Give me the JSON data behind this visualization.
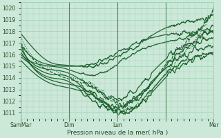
{
  "bg_color": "#cce8d8",
  "grid_color": "#99ccb0",
  "line_color": "#1a5c2a",
  "xlabel": "Pression niveau de la mer( hPa )",
  "ylim": [
    1010.5,
    1020.5
  ],
  "xlim": [
    0,
    96
  ],
  "yticks": [
    1011,
    1012,
    1013,
    1014,
    1015,
    1016,
    1017,
    1018,
    1019,
    1020
  ],
  "xtick_positions": [
    0,
    24,
    48,
    72,
    96
  ],
  "xtick_labels": [
    "SamMar",
    "Dim",
    "Lun",
    "",
    "Mer"
  ],
  "figsize": [
    3.2,
    2.0
  ],
  "dpi": 100,
  "lines": [
    {
      "anchors_x": [
        0,
        8,
        15,
        22,
        35,
        55,
        75,
        90,
        96
      ],
      "anchors_y": [
        1017.8,
        1016.2,
        1015.3,
        1015.1,
        1015.0,
        1016.5,
        1018.5,
        1019.0,
        1019.3
      ],
      "lw": 0.9,
      "ls": "-"
    },
    {
      "anchors_x": [
        0,
        8,
        15,
        22,
        35,
        55,
        75,
        90,
        96
      ],
      "anchors_y": [
        1016.8,
        1015.5,
        1015.1,
        1015.0,
        1015.2,
        1016.8,
        1017.8,
        1018.0,
        1018.0
      ],
      "lw": 0.9,
      "ls": "-"
    },
    {
      "anchors_x": [
        0,
        8,
        15,
        22,
        35,
        55,
        75,
        90,
        96
      ],
      "anchors_y": [
        1016.0,
        1015.2,
        1015.0,
        1014.8,
        1014.2,
        1016.0,
        1017.2,
        1017.8,
        1018.0
      ],
      "lw": 0.9,
      "ls": "-"
    },
    {
      "anchors_x": [
        0,
        8,
        15,
        22,
        35,
        50,
        60,
        75,
        90,
        96
      ],
      "anchors_y": [
        1016.5,
        1015.0,
        1014.7,
        1014.5,
        1013.2,
        1012.2,
        1013.5,
        1016.0,
        1017.2,
        1017.5
      ],
      "lw": 0.9,
      "ls": "-"
    },
    {
      "anchors_x": [
        0,
        8,
        15,
        22,
        35,
        50,
        60,
        75,
        90,
        96
      ],
      "anchors_y": [
        1015.8,
        1014.8,
        1014.3,
        1014.2,
        1012.5,
        1011.5,
        1012.8,
        1015.2,
        1016.5,
        1016.8
      ],
      "lw": 0.9,
      "ls": "-"
    },
    {
      "anchors_x": [
        0,
        8,
        15,
        22,
        35,
        50,
        60,
        75,
        90,
        96
      ],
      "anchors_y": [
        1016.2,
        1014.6,
        1014.0,
        1013.8,
        1012.2,
        1011.1,
        1012.0,
        1014.8,
        1016.0,
        1016.2
      ],
      "lw": 0.9,
      "ls": "-"
    },
    {
      "anchors_x": [
        0,
        8,
        15,
        22,
        35,
        50,
        60,
        75,
        90,
        96
      ],
      "anchors_y": [
        1016.8,
        1014.5,
        1013.8,
        1013.5,
        1012.8,
        1011.0,
        1011.8,
        1014.5,
        1015.8,
        1016.0
      ],
      "lw": 0.9,
      "ls": "-"
    },
    {
      "anchors_x": [
        0,
        8,
        15,
        22,
        35,
        50,
        60,
        75,
        90,
        96
      ],
      "anchors_y": [
        1015.5,
        1014.2,
        1013.5,
        1013.2,
        1012.5,
        1011.5,
        1012.5,
        1015.5,
        1017.5,
        1018.5
      ],
      "lw": 0.9,
      "ls": "-"
    },
    {
      "anchors_x": [
        0,
        5,
        10,
        15,
        22,
        35,
        50,
        60,
        75,
        90,
        96
      ],
      "anchors_y": [
        1017.0,
        1015.8,
        1015.0,
        1014.5,
        1014.0,
        1013.2,
        1011.8,
        1012.5,
        1015.8,
        1018.5,
        1020.0
      ],
      "lw": 0.9,
      "ls": "--"
    },
    {
      "anchors_x": [
        0,
        5,
        10,
        15,
        22,
        35,
        50,
        60,
        75,
        90,
        96
      ],
      "anchors_y": [
        1017.5,
        1016.0,
        1015.2,
        1014.8,
        1014.2,
        1013.5,
        1011.5,
        1012.0,
        1015.0,
        1018.0,
        1020.2
      ],
      "lw": 0.8,
      "ls": ":"
    }
  ],
  "wiggles": [
    {
      "xmin": 30,
      "xmax": 65,
      "amp": 0.25
    },
    {
      "xmin": 30,
      "xmax": 65,
      "amp": 0.2
    },
    {
      "xmin": 30,
      "xmax": 65,
      "amp": 0.2
    },
    {
      "xmin": 30,
      "xmax": 65,
      "amp": 0.3
    },
    {
      "xmin": 30,
      "xmax": 65,
      "amp": 0.35
    },
    {
      "xmin": 30,
      "xmax": 65,
      "amp": 0.35
    },
    {
      "xmin": 30,
      "xmax": 65,
      "amp": 0.3
    },
    {
      "xmin": 30,
      "xmax": 65,
      "amp": 0.3
    },
    {
      "xmin": 30,
      "xmax": 68,
      "amp": 0.35
    },
    {
      "xmin": 30,
      "xmax": 68,
      "amp": 0.35
    }
  ],
  "end_wiggles": [
    {
      "xmin": 73,
      "xmax": 96,
      "amp": 0.35
    },
    {
      "xmin": 73,
      "xmax": 96,
      "amp": 0.3
    },
    {
      "xmin": 73,
      "xmax": 96,
      "amp": 0.3
    },
    {
      "xmin": 73,
      "xmax": 96,
      "amp": 0.35
    },
    {
      "xmin": 73,
      "xmax": 96,
      "amp": 0.35
    },
    {
      "xmin": 73,
      "xmax": 96,
      "amp": 0.3
    },
    {
      "xmin": 73,
      "xmax": 96,
      "amp": 0.3
    },
    {
      "xmin": 73,
      "xmax": 96,
      "amp": 0.4
    },
    {
      "xmin": 73,
      "xmax": 96,
      "amp": 0.45
    },
    {
      "xmin": 73,
      "xmax": 96,
      "amp": 0.45
    }
  ]
}
